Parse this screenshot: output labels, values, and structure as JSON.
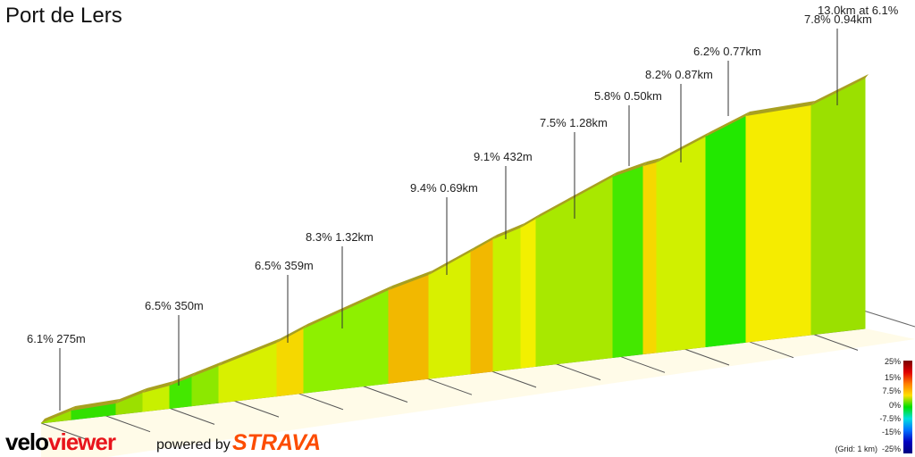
{
  "title": "Port de Lers",
  "summary": "13.0km at 6.1%",
  "annotations": [
    {
      "text": "6.1% 275m"
    },
    {
      "text": "6.5% 350m"
    },
    {
      "text": "6.5% 359m"
    },
    {
      "text": "8.3% 1.32km"
    },
    {
      "text": "9.4% 0.69km"
    },
    {
      "text": "9.1% 432m"
    },
    {
      "text": "7.5% 1.28km"
    },
    {
      "text": "5.8% 0.50km"
    },
    {
      "text": "8.2% 0.87km"
    },
    {
      "text": "6.2% 0.77km"
    },
    {
      "text": "7.8% 0.94km"
    }
  ],
  "segment_colors": [
    "#9be000",
    "#33e000",
    "#9be000",
    "#c8f000",
    "#44e800",
    "#8ce800",
    "#d8f000",
    "#f5d800",
    "#8ef000",
    "#f2b800",
    "#d8f000",
    "#f2b800",
    "#c8f000",
    "#f2f000",
    "#a8e800",
    "#44e800",
    "#f5d800",
    "#d0f000",
    "#22e800",
    "#f5ec00"
  ],
  "legend": {
    "ticks": [
      "25%",
      "15%",
      "7.5%",
      "0%",
      "-7.5%",
      "-15%",
      "-25%"
    ],
    "grid": "(Grid: 1 km)"
  },
  "footer": {
    "brand_a": "velo",
    "brand_b": "viewer",
    "powered": "powered by",
    "strava": "STRAVA"
  }
}
